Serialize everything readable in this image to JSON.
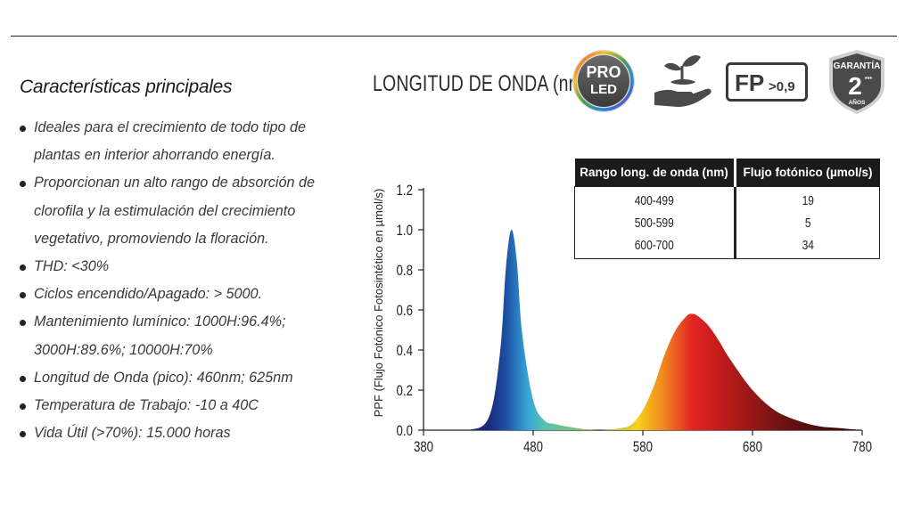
{
  "header": {
    "section_title": "Características principales"
  },
  "features": [
    "Ideales para el crecimiento de todo tipo de plantas en interior ahorrando energía.",
    "Proporcionan un alto rango de absorción de clorofila y la estimulación del crecimiento vegetativo, promoviendo la floración.",
    "THD: <30%",
    "Ciclos encendido/Apagado: > 5000.",
    "Mantenimiento lumínico: 1000H:96.4%; 3000H:89.6%; 10000H:70%",
    "Longitud de Onda (pico): 460nm; 625nm",
    "Temperatura de Trabajo: -10 a 40C",
    "Vida Útil (>70%): 15.000 horas"
  ],
  "badges": {
    "pro_led": {
      "line1": "PRO",
      "line2": "LED"
    },
    "fp": {
      "main": "FP",
      "sub": ">0,9"
    },
    "guarantee": {
      "top": "GARANTÍA",
      "number": "2",
      "stars": "***",
      "bottom": "AÑOS"
    }
  },
  "flux_table": {
    "headers": [
      "Rango long. de onda (nm)",
      "Flujo fotónico (µmol/s)"
    ],
    "rows": [
      [
        "400-499",
        "19"
      ],
      [
        "500-599",
        "5"
      ],
      [
        "600-700",
        "34"
      ]
    ]
  },
  "chart_data": {
    "type": "area",
    "title": "LONGITUD DE ONDA (nm)",
    "xlabel": "",
    "ylabel": "PPF (Flujo Fotónico Fotosintético en µmol/s)",
    "xlim": [
      380,
      780
    ],
    "ylim": [
      0,
      1.2
    ],
    "xticks": [
      380,
      480,
      580,
      680,
      780
    ],
    "yticks": [
      "0.0",
      "0.2",
      "0.4",
      "0.6",
      "0.8",
      "1.0",
      "1.2"
    ],
    "grid": false,
    "series": [
      {
        "values": [
          [
            380,
            0.0
          ],
          [
            420,
            0.0
          ],
          [
            440,
            0.07
          ],
          [
            450,
            0.4
          ],
          [
            455,
            0.8
          ],
          [
            460,
            1.0
          ],
          [
            465,
            0.85
          ],
          [
            470,
            0.48
          ],
          [
            480,
            0.15
          ],
          [
            490,
            0.05
          ],
          [
            500,
            0.03
          ],
          [
            520,
            0.01
          ],
          [
            540,
            0.0
          ],
          [
            560,
            0.01
          ],
          [
            570,
            0.03
          ],
          [
            580,
            0.1
          ],
          [
            590,
            0.22
          ],
          [
            600,
            0.38
          ],
          [
            610,
            0.5
          ],
          [
            620,
            0.57
          ],
          [
            625,
            0.58
          ],
          [
            630,
            0.57
          ],
          [
            640,
            0.52
          ],
          [
            650,
            0.44
          ],
          [
            660,
            0.35
          ],
          [
            680,
            0.2
          ],
          [
            700,
            0.1
          ],
          [
            720,
            0.05
          ],
          [
            740,
            0.02
          ],
          [
            760,
            0.01
          ],
          [
            780,
            0.0
          ]
        ]
      }
    ]
  }
}
